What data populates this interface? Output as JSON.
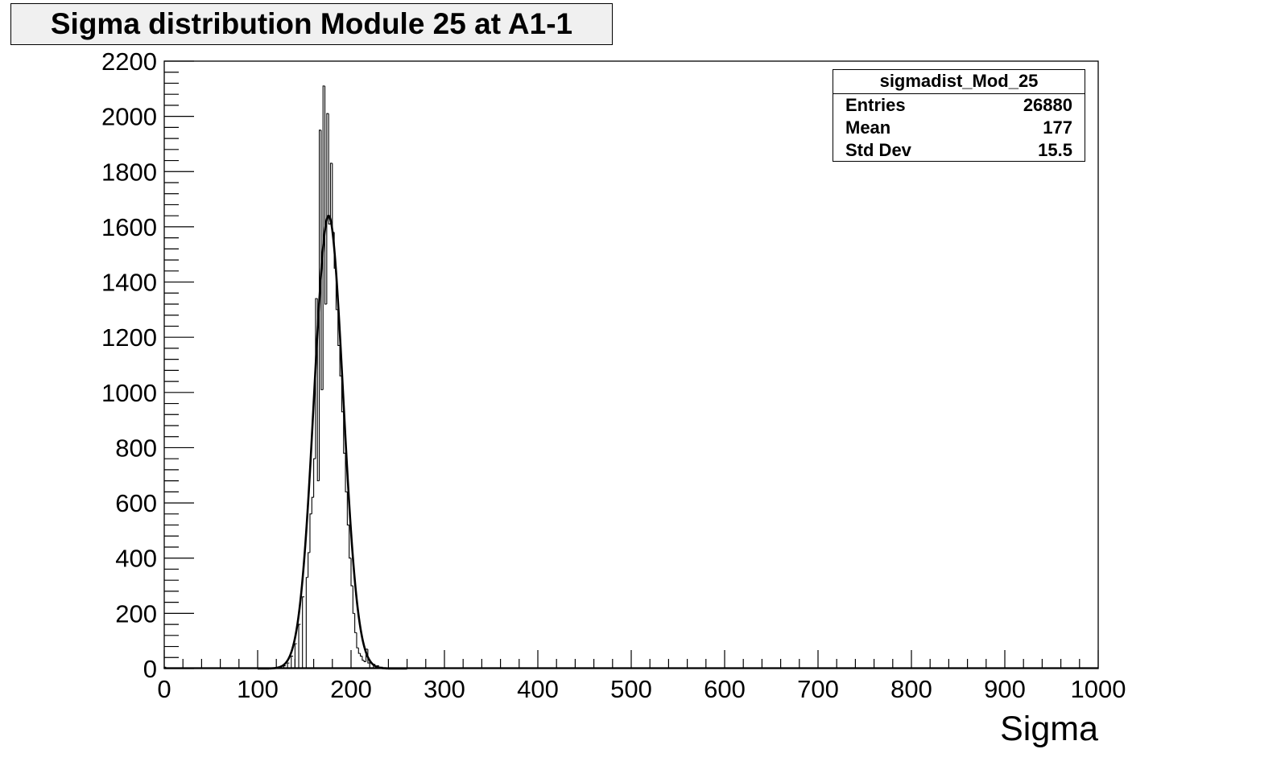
{
  "chart_data": {
    "type": "bar",
    "title": "Sigma distribution Module 25 at A1-1",
    "xlabel": "Sigma",
    "ylabel": "",
    "xlim": [
      0,
      1000
    ],
    "ylim": [
      0,
      2200
    ],
    "x_ticks": [
      "0",
      "100",
      "200",
      "300",
      "400",
      "500",
      "600",
      "700",
      "800",
      "900",
      "1000"
    ],
    "y_ticks": [
      "0",
      "200",
      "400",
      "600",
      "800",
      "1000",
      "1200",
      "1400",
      "1600",
      "1800",
      "2000",
      "2200"
    ],
    "grid": false,
    "legend": "top-right",
    "bin_width": 2,
    "bins": [
      [
        0,
        5
      ],
      [
        120,
        2
      ],
      [
        124,
        4
      ],
      [
        128,
        10
      ],
      [
        132,
        20
      ],
      [
        136,
        45
      ],
      [
        140,
        90
      ],
      [
        144,
        160
      ],
      [
        148,
        260
      ],
      [
        152,
        330
      ],
      [
        154,
        420
      ],
      [
        156,
        560
      ],
      [
        158,
        620
      ],
      [
        160,
        760
      ],
      [
        162,
        1340
      ],
      [
        164,
        680
      ],
      [
        166,
        1950
      ],
      [
        168,
        1010
      ],
      [
        170,
        2110
      ],
      [
        172,
        1320
      ],
      [
        174,
        2010
      ],
      [
        176,
        1610
      ],
      [
        178,
        1830
      ],
      [
        180,
        1580
      ],
      [
        182,
        1450
      ],
      [
        184,
        1300
      ],
      [
        186,
        1170
      ],
      [
        188,
        1060
      ],
      [
        190,
        930
      ],
      [
        192,
        780
      ],
      [
        194,
        640
      ],
      [
        196,
        520
      ],
      [
        198,
        400
      ],
      [
        200,
        300
      ],
      [
        202,
        200
      ],
      [
        204,
        130
      ],
      [
        206,
        75
      ],
      [
        208,
        55
      ],
      [
        210,
        45
      ],
      [
        212,
        30
      ],
      [
        214,
        25
      ],
      [
        216,
        70
      ],
      [
        218,
        20
      ],
      [
        220,
        25
      ],
      [
        224,
        15
      ],
      [
        228,
        10
      ],
      [
        232,
        5
      ],
      [
        236,
        3
      ],
      [
        240,
        2
      ]
    ],
    "fit_curve": {
      "type": "gaussian",
      "amplitude": 1640,
      "mean": 176,
      "sigma": 15.5
    },
    "stats": {
      "name": "sigmadist_Mod_25",
      "rows": [
        {
          "label": "Entries",
          "value": "26880"
        },
        {
          "label": "Mean",
          "value": "177"
        },
        {
          "label": "Std Dev",
          "value": "15.5"
        }
      ]
    }
  }
}
